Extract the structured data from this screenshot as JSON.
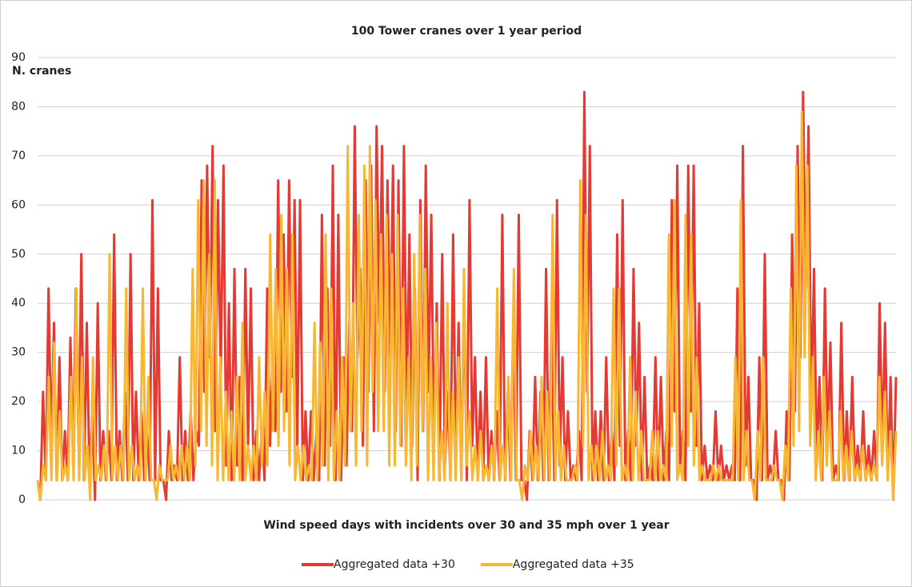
{
  "chart_data": {
    "type": "line",
    "title": "100 Tower cranes over 1 year period",
    "y_label": "N. cranes",
    "x_label": "Wind speed days with incidents over 30 and 35 mph over 1 year",
    "ylim": [
      0,
      90
    ],
    "yticks": [
      0,
      10,
      20,
      30,
      40,
      50,
      60,
      70,
      80,
      90
    ],
    "grid": true,
    "legend": "bottom",
    "series": [
      {
        "name": "Aggregated data +30",
        "color": "#e53a33",
        "values": [
          4,
          0,
          22,
          4,
          43,
          11,
          36,
          4,
          29,
          4,
          14,
          4,
          33,
          7,
          43,
          11,
          50,
          4,
          36,
          4,
          18,
          0,
          40,
          4,
          14,
          4,
          14,
          4,
          54,
          4,
          14,
          4,
          22,
          4,
          50,
          4,
          22,
          4,
          18,
          4,
          14,
          4,
          61,
          4,
          43,
          4,
          4,
          0,
          14,
          4,
          7,
          4,
          29,
          4,
          14,
          4,
          18,
          4,
          14,
          11,
          65,
          22,
          68,
          29,
          72,
          14,
          61,
          25,
          68,
          7,
          40,
          4,
          47,
          7,
          25,
          4,
          47,
          11,
          43,
          4,
          14,
          4,
          14,
          4,
          43,
          11,
          29,
          14,
          65,
          22,
          54,
          18,
          65,
          25,
          61,
          11,
          61,
          4,
          18,
          4,
          18,
          4,
          14,
          4,
          58,
          7,
          43,
          11,
          68,
          4,
          58,
          4,
          29,
          7,
          36,
          14,
          76,
          29,
          47,
          11,
          65,
          22,
          68,
          14,
          76,
          36,
          72,
          22,
          65,
          29,
          68,
          14,
          65,
          11,
          72,
          18,
          54,
          11,
          43,
          4,
          61,
          14,
          68,
          22,
          58,
          11,
          40,
          4,
          50,
          7,
          22,
          4,
          54,
          7,
          36,
          4,
          43,
          4,
          61,
          11,
          29,
          4,
          22,
          4,
          29,
          4,
          14,
          4,
          18,
          4,
          58,
          4,
          22,
          4,
          36,
          4,
          58,
          4,
          4,
          0,
          14,
          4,
          25,
          4,
          22,
          4,
          47,
          4,
          36,
          4,
          61,
          7,
          29,
          4,
          18,
          4,
          7,
          4,
          14,
          4,
          83,
          22,
          72,
          4,
          18,
          4,
          18,
          4,
          29,
          4,
          14,
          4,
          54,
          11,
          61,
          4,
          14,
          4,
          47,
          11,
          36,
          4,
          25,
          4,
          7,
          4,
          29,
          4,
          25,
          4,
          14,
          4,
          61,
          18,
          68,
          7,
          14,
          4,
          68,
          18,
          68,
          11,
          40,
          4,
          11,
          4,
          7,
          4,
          18,
          4,
          11,
          4,
          7,
          4,
          7,
          4,
          43,
          4,
          72,
          7,
          25,
          4,
          4,
          0,
          29,
          4,
          50,
          4,
          7,
          4,
          14,
          4,
          4,
          0,
          18,
          4,
          54,
          18,
          72,
          29,
          83,
          43,
          76,
          18,
          47,
          7,
          25,
          4,
          43,
          11,
          32,
          4,
          7,
          4,
          36,
          4,
          18,
          4,
          25,
          4,
          11,
          4,
          18,
          4,
          11,
          4,
          14,
          4,
          40,
          11,
          36,
          4,
          25,
          0,
          25
        ]
      },
      {
        "name": "Aggregated data +35",
        "color": "#f7b733",
        "values": [
          4,
          0,
          7,
          4,
          25,
          4,
          32,
          4,
          18,
          4,
          7,
          4,
          25,
          4,
          43,
          4,
          29,
          4,
          11,
          0,
          29,
          4,
          7,
          4,
          11,
          4,
          50,
          4,
          11,
          4,
          11,
          4,
          43,
          4,
          11,
          4,
          7,
          4,
          43,
          4,
          25,
          4,
          4,
          0,
          7,
          4,
          4,
          4,
          11,
          4,
          7,
          4,
          11,
          4,
          11,
          4,
          47,
          7,
          61,
          14,
          65,
          11,
          50,
          7,
          65,
          4,
          29,
          4,
          22,
          4,
          18,
          4,
          25,
          4,
          36,
          4,
          11,
          4,
          11,
          4,
          29,
          7,
          22,
          7,
          54,
          14,
          47,
          11,
          58,
          14,
          47,
          7,
          54,
          4,
          11,
          4,
          11,
          4,
          7,
          4,
          36,
          4,
          32,
          7,
          54,
          4,
          43,
          4,
          18,
          4,
          29,
          7,
          72,
          14,
          40,
          7,
          58,
          14,
          68,
          7,
          72,
          22,
          61,
          14,
          54,
          14,
          58,
          7,
          50,
          7,
          58,
          11,
          43,
          7,
          29,
          4,
          50,
          7,
          58,
          14,
          47,
          4,
          29,
          4,
          36,
          4,
          14,
          4,
          40,
          4,
          22,
          4,
          29,
          4,
          47,
          7,
          18,
          4,
          11,
          4,
          14,
          4,
          7,
          4,
          11,
          4,
          43,
          4,
          11,
          4,
          25,
          4,
          47,
          4,
          4,
          0,
          7,
          4,
          14,
          4,
          11,
          4,
          25,
          4,
          22,
          4,
          58,
          4,
          18,
          4,
          11,
          4,
          4,
          4,
          7,
          4,
          65,
          11,
          58,
          4,
          11,
          4,
          11,
          4,
          14,
          4,
          7,
          4,
          43,
          7,
          43,
          4,
          7,
          4,
          29,
          4,
          22,
          4,
          14,
          4,
          4,
          4,
          14,
          4,
          14,
          4,
          7,
          4,
          54,
          11,
          61,
          4,
          7,
          4,
          58,
          11,
          54,
          7,
          29,
          4,
          7,
          4,
          4,
          4,
          7,
          4,
          7,
          4,
          4,
          4,
          4,
          4,
          29,
          4,
          61,
          4,
          14,
          4,
          4,
          0,
          14,
          4,
          29,
          4,
          4,
          4,
          7,
          4,
          4,
          0,
          11,
          4,
          43,
          11,
          68,
          14,
          79,
          29,
          68,
          11,
          29,
          4,
          14,
          4,
          25,
          7,
          18,
          4,
          4,
          4,
          18,
          4,
          11,
          4,
          14,
          4,
          7,
          4,
          11,
          4,
          7,
          4,
          7,
          4,
          25,
          7,
          22,
          4,
          14,
          0,
          14
        ]
      }
    ]
  }
}
